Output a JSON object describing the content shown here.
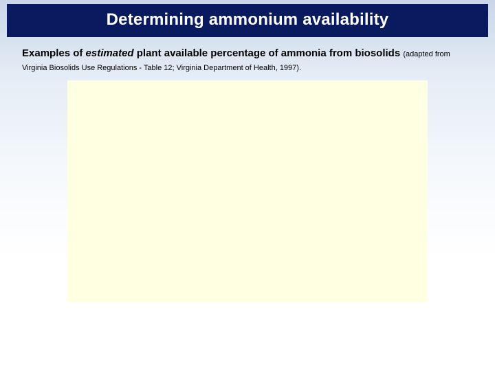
{
  "title": "Determining ammonium availability",
  "caption": {
    "lead": "Examples of ",
    "emph": "estimated",
    "mid": " plant available percentage of ammonia from biosolids ",
    "source": "(adapted from Virginia Biosolids Use Regulations - Table 12; Virginia Department of Health, 1997)."
  },
  "colors": {
    "title_bg": "#0a1a5e",
    "title_text": "#ffffff",
    "body_gradient_top": "#c9d6e8",
    "body_gradient_bottom": "#ffffff",
    "content_box_bg": "#ffffe1",
    "caption_text": "#000000"
  },
  "layout": {
    "slide_width": 720,
    "slide_height": 540,
    "title_bar_width": 700,
    "content_box_width": 524,
    "content_box_height": 322,
    "title_fontsize": 24,
    "caption_fontsize": 15,
    "source_fontsize": 11
  }
}
